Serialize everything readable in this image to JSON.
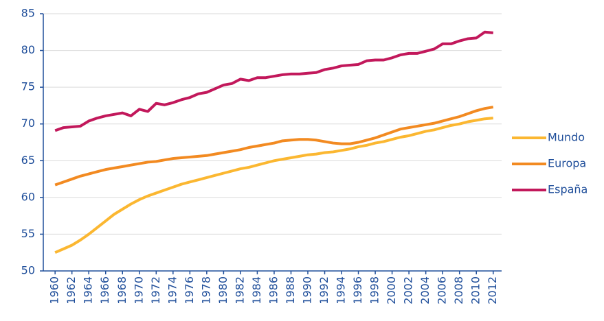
{
  "chart_data": {
    "type": "line",
    "x": [
      1960,
      1961,
      1962,
      1963,
      1964,
      1965,
      1966,
      1967,
      1968,
      1969,
      1970,
      1971,
      1972,
      1973,
      1974,
      1975,
      1976,
      1977,
      1978,
      1979,
      1980,
      1981,
      1982,
      1983,
      1984,
      1985,
      1986,
      1987,
      1988,
      1989,
      1990,
      1991,
      1992,
      1993,
      1994,
      1995,
      1996,
      1997,
      1998,
      1999,
      2000,
      2001,
      2002,
      2003,
      2004,
      2005,
      2006,
      2007,
      2008,
      2009,
      2010,
      2011,
      2012
    ],
    "series": [
      {
        "name": "Mundo",
        "color": "#fbb731",
        "values": [
          52.5,
          53.0,
          53.5,
          54.2,
          55.0,
          55.9,
          56.8,
          57.7,
          58.4,
          59.1,
          59.7,
          60.2,
          60.6,
          61.0,
          61.4,
          61.8,
          62.1,
          62.4,
          62.7,
          63.0,
          63.3,
          63.6,
          63.9,
          64.1,
          64.4,
          64.7,
          65.0,
          65.2,
          65.4,
          65.6,
          65.8,
          65.9,
          66.1,
          66.2,
          66.4,
          66.6,
          66.9,
          67.1,
          67.4,
          67.6,
          67.9,
          68.2,
          68.4,
          68.7,
          69.0,
          69.2,
          69.5,
          69.8,
          70.0,
          70.3,
          70.5,
          70.7,
          70.8
        ]
      },
      {
        "name": "Europa",
        "color": "#f28a21",
        "values": [
          61.7,
          62.1,
          62.5,
          62.9,
          63.2,
          63.5,
          63.8,
          64.0,
          64.2,
          64.4,
          64.6,
          64.8,
          64.9,
          65.1,
          65.3,
          65.4,
          65.5,
          65.6,
          65.7,
          65.9,
          66.1,
          66.3,
          66.5,
          66.8,
          67.0,
          67.2,
          67.4,
          67.7,
          67.8,
          67.9,
          67.9,
          67.8,
          67.6,
          67.4,
          67.3,
          67.3,
          67.5,
          67.8,
          68.1,
          68.5,
          68.9,
          69.3,
          69.5,
          69.7,
          69.9,
          70.1,
          70.4,
          70.7,
          71.0,
          71.4,
          71.8,
          72.1,
          72.3
        ]
      },
      {
        "name": "España",
        "color": "#c2185b",
        "values": [
          69.1,
          69.5,
          69.6,
          69.7,
          70.4,
          70.8,
          71.1,
          71.3,
          71.5,
          71.1,
          72.0,
          71.7,
          72.8,
          72.6,
          72.9,
          73.3,
          73.6,
          74.1,
          74.3,
          74.8,
          75.3,
          75.5,
          76.1,
          75.9,
          76.3,
          76.3,
          76.5,
          76.7,
          76.8,
          76.8,
          76.9,
          77.0,
          77.4,
          77.6,
          77.9,
          78.0,
          78.1,
          78.6,
          78.7,
          78.7,
          79.0,
          79.4,
          79.6,
          79.6,
          79.9,
          80.2,
          80.9,
          80.9,
          81.3,
          81.6,
          81.7,
          82.5,
          82.4
        ]
      }
    ],
    "xlim": [
      1958.6,
      2013
    ],
    "xticks": [
      1960,
      1962,
      1964,
      1966,
      1968,
      1970,
      1972,
      1974,
      1976,
      1978,
      1980,
      1982,
      1984,
      1986,
      1988,
      1990,
      1992,
      1994,
      1996,
      1998,
      2000,
      2002,
      2004,
      2006,
      2008,
      2010,
      2012
    ],
    "ylim": [
      50,
      85
    ],
    "yticks": [
      50,
      55,
      60,
      65,
      70,
      75,
      80,
      85
    ],
    "grid": true,
    "legend": "right"
  }
}
